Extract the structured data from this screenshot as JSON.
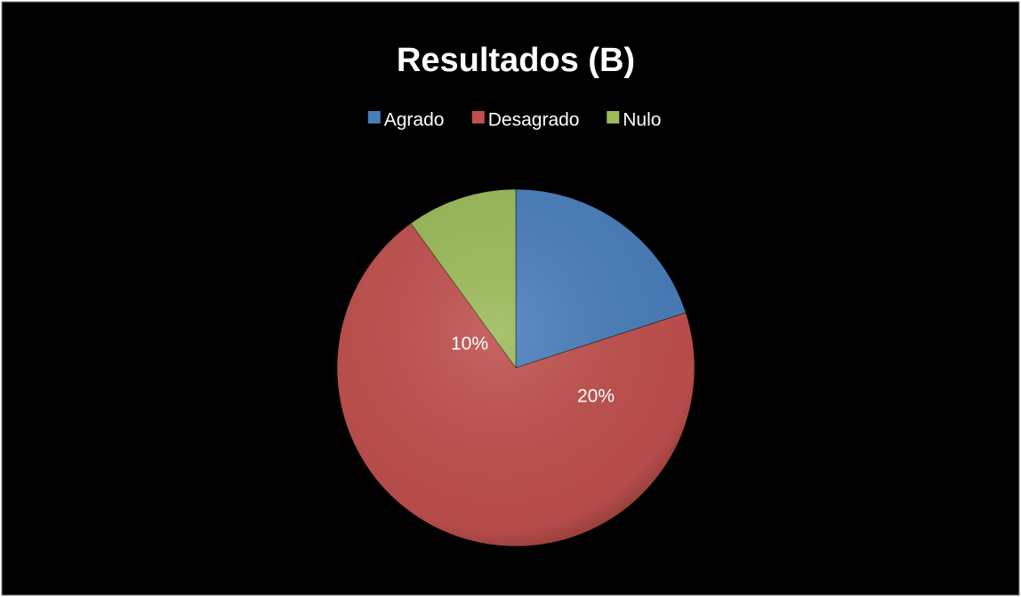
{
  "chart_data": {
    "type": "pie",
    "title": "Resultados (B)",
    "categories": [
      "Agrado",
      "Desagrado",
      "Nulo"
    ],
    "values": [
      20,
      70,
      10
    ],
    "value_labels": [
      "20%",
      null,
      "10%"
    ],
    "colors": [
      "#4a7ebb",
      "#c0504d",
      "#9bbb59"
    ],
    "legend": "top"
  }
}
